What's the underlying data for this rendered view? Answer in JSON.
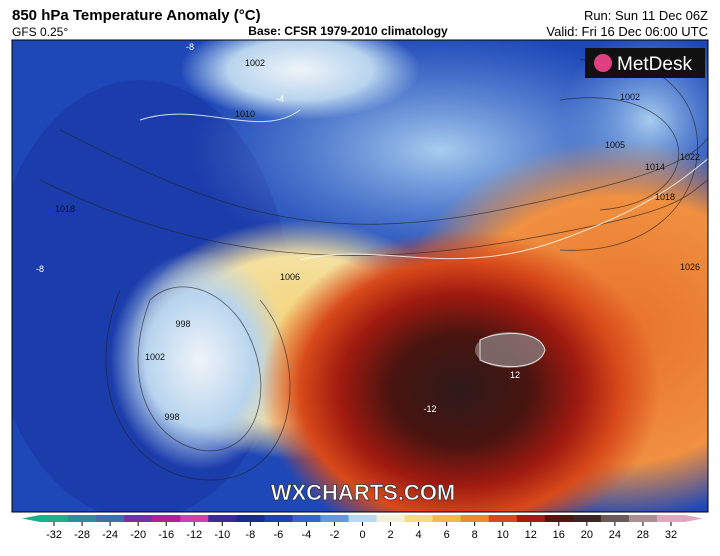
{
  "header": {
    "title": "850 hPa Temperature Anomaly (°C)",
    "model": "GFS 0.25°",
    "base": "Base: CFSR 1979-2010 climatology",
    "run": "Run: Sun 11 Dec 06Z",
    "valid": "Valid: Fri 16 Dec 06:00 UTC"
  },
  "logo": "MetDesk",
  "watermark": "WXCHARTS.COM",
  "map_labels": [
    "1002",
    "1010",
    "1006",
    "998",
    "1002",
    "998",
    "1002",
    "1005",
    "1014",
    "1018",
    "1022",
    "1026",
    "-8",
    "-8",
    "-4",
    "12",
    "-12",
    "1018"
  ],
  "colorbar": {
    "ticks": [
      -32,
      -28,
      -24,
      -20,
      -16,
      -12,
      -10,
      -8,
      -6,
      -4,
      -2,
      0,
      2,
      4,
      6,
      8,
      10,
      12,
      16,
      20,
      24,
      28,
      32
    ],
    "colors": [
      "#1fae8a",
      "#2a8f9a",
      "#3b6fb0",
      "#7a2fa8",
      "#b0209a",
      "#d040b0",
      "#3a2a9a",
      "#1a2a90",
      "#1e40b0",
      "#2f66cc",
      "#5d9ae0",
      "#b8d8f0",
      "#f2f0d8",
      "#f4dc80",
      "#f6b84a",
      "#ec8a2a",
      "#d8481a",
      "#a81a10",
      "#5a1010",
      "#3a2424",
      "#6a5a5a",
      "#a89090",
      "#e0a8c0"
    ]
  }
}
